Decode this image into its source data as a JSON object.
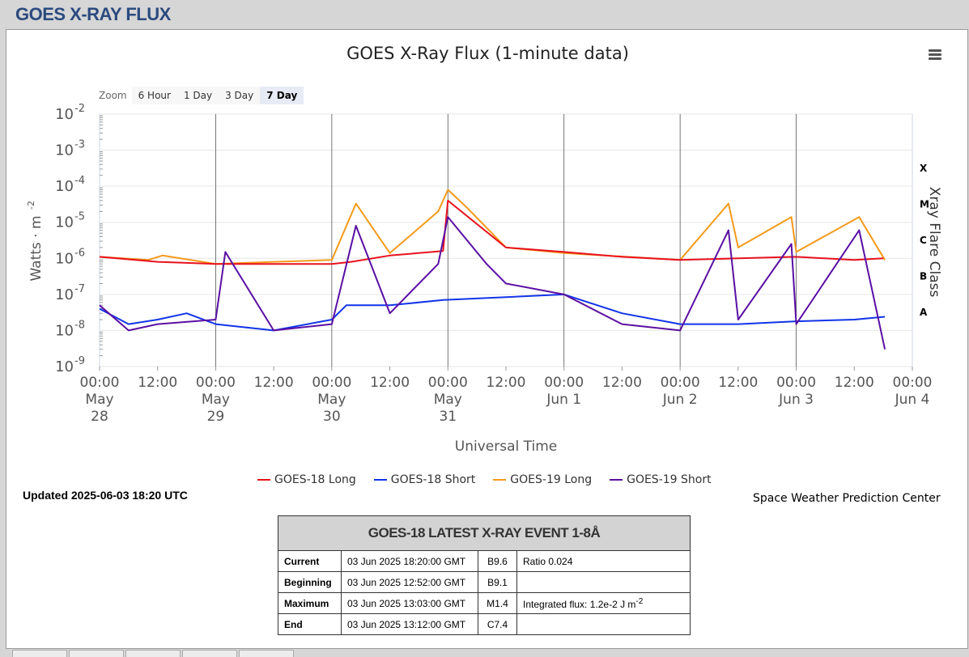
{
  "page": {
    "title": "GOES X-RAY FLUX"
  },
  "chart": {
    "title": "GOES X-Ray Flux (1-minute data)",
    "zoom_label": "Zoom",
    "zoom_buttons": [
      "6 Hour",
      "1 Day",
      "3 Day",
      "7 Day"
    ],
    "zoom_active": "7 Day",
    "ylabel": "Watts · m",
    "ylabel_sup": "-2",
    "y2label": "Xray Flare Class",
    "xlabel": "Universal Time",
    "flare_classes": [
      "X",
      "M",
      "C",
      "B",
      "A"
    ],
    "y_ticks": [
      {
        "base": "10",
        "exp": "-2"
      },
      {
        "base": "10",
        "exp": "-3"
      },
      {
        "base": "10",
        "exp": "-4"
      },
      {
        "base": "10",
        "exp": "-5"
      },
      {
        "base": "10",
        "exp": "-6"
      },
      {
        "base": "10",
        "exp": "-7"
      },
      {
        "base": "10",
        "exp": "-8"
      },
      {
        "base": "10",
        "exp": "-9"
      }
    ],
    "x_ticks": [
      {
        "time": "00:00",
        "date1": "May",
        "date2": "28"
      },
      {
        "time": "12:00",
        "date1": "",
        "date2": ""
      },
      {
        "time": "00:00",
        "date1": "May",
        "date2": "29"
      },
      {
        "time": "12:00",
        "date1": "",
        "date2": ""
      },
      {
        "time": "00:00",
        "date1": "May",
        "date2": "30"
      },
      {
        "time": "12:00",
        "date1": "",
        "date2": ""
      },
      {
        "time": "00:00",
        "date1": "May",
        "date2": "31"
      },
      {
        "time": "12:00",
        "date1": "",
        "date2": ""
      },
      {
        "time": "00:00",
        "date1": "Jun 1",
        "date2": ""
      },
      {
        "time": "12:00",
        "date1": "",
        "date2": ""
      },
      {
        "time": "00:00",
        "date1": "Jun 2",
        "date2": ""
      },
      {
        "time": "12:00",
        "date1": "",
        "date2": ""
      },
      {
        "time": "00:00",
        "date1": "Jun 3",
        "date2": ""
      },
      {
        "time": "12:00",
        "date1": "",
        "date2": ""
      },
      {
        "time": "00:00",
        "date1": "Jun 4",
        "date2": ""
      }
    ]
  },
  "chart_data": {
    "type": "line",
    "title": "GOES X-Ray Flux (1-minute data)",
    "xlabel": "Universal Time",
    "ylabel": "Watts · m-2",
    "y_scale": "log",
    "ylim": [
      1e-09,
      0.01
    ],
    "xlim": [
      "2025-05-28 00:00",
      "2025-06-04 00:00"
    ],
    "grid": true,
    "legend_position": "bottom",
    "series": [
      {
        "name": "GOES-18 Long",
        "color": "#e8111d",
        "points": [
          [
            "2025-05-28 00:00",
            1.1e-06
          ],
          [
            "2025-05-28 12:00",
            8e-07
          ],
          [
            "2025-05-29 00:00",
            7e-07
          ],
          [
            "2025-05-29 12:00",
            7e-07
          ],
          [
            "2025-05-30 00:00",
            7e-07
          ],
          [
            "2025-05-30 04:00",
            8e-07
          ],
          [
            "2025-05-30 12:00",
            1.2e-06
          ],
          [
            "2025-05-30 23:00",
            1.6e-06
          ],
          [
            "2025-05-31 00:00",
            4e-05
          ],
          [
            "2025-05-31 12:00",
            2e-06
          ],
          [
            "2025-06-01 00:00",
            1.5e-06
          ],
          [
            "2025-06-01 12:00",
            1.1e-06
          ],
          [
            "2025-06-02 00:00",
            9e-07
          ],
          [
            "2025-06-02 12:00",
            1e-06
          ],
          [
            "2025-06-03 00:00",
            1.1e-06
          ],
          [
            "2025-06-03 12:00",
            9e-07
          ],
          [
            "2025-06-03 18:00",
            1e-06
          ]
        ]
      },
      {
        "name": "GOES-18 Short",
        "color": "#1134e8",
        "points": [
          [
            "2025-05-28 00:00",
            4e-08
          ],
          [
            "2025-05-28 06:00",
            1.5e-08
          ],
          [
            "2025-05-28 12:00",
            2e-08
          ],
          [
            "2025-05-28 18:00",
            3e-08
          ],
          [
            "2025-05-29 00:00",
            1.5e-08
          ],
          [
            "2025-05-29 12:00",
            1e-08
          ],
          [
            "2025-05-30 00:00",
            2e-08
          ],
          [
            "2025-05-30 03:00",
            5e-08
          ],
          [
            "2025-05-30 12:00",
            5e-08
          ],
          [
            "2025-05-30 23:00",
            7e-08
          ],
          [
            "2025-06-01 00:00",
            1e-07
          ],
          [
            "2025-06-01 12:00",
            3e-08
          ],
          [
            "2025-06-02 00:00",
            1.5e-08
          ],
          [
            "2025-06-02 12:00",
            1.5e-08
          ],
          [
            "2025-06-03 00:00",
            1.8e-08
          ],
          [
            "2025-06-03 12:00",
            2e-08
          ],
          [
            "2025-06-03 18:20",
            2.4e-08
          ]
        ]
      },
      {
        "name": "GOES-19 Long",
        "color": "#f49a1b",
        "points": [
          [
            "2025-05-28 00:00",
            1.1e-06
          ],
          [
            "2025-05-28 10:00",
            9e-07
          ],
          [
            "2025-05-28 13:00",
            1.2e-06
          ],
          [
            "2025-05-29 00:00",
            7e-07
          ],
          [
            "2025-05-29 12:00",
            8e-07
          ],
          [
            "2025-05-30 00:00",
            9e-07
          ],
          [
            "2025-05-30 05:00",
            3.3e-05
          ],
          [
            "2025-05-30 12:00",
            1.4e-06
          ],
          [
            "2025-05-30 22:00",
            2e-05
          ],
          [
            "2025-05-31 00:00",
            8e-05
          ],
          [
            "2025-05-31 04:00",
            2.5e-05
          ],
          [
            "2025-05-31 12:00",
            2e-06
          ],
          [
            "2025-06-01 00:00",
            1.4e-06
          ],
          [
            "2025-06-02 00:00",
            9e-07
          ],
          [
            "2025-06-02 10:00",
            3.3e-05
          ],
          [
            "2025-06-02 12:00",
            2e-06
          ],
          [
            "2025-06-02 23:00",
            1.4e-05
          ],
          [
            "2025-06-03 00:00",
            1.5e-06
          ],
          [
            "2025-06-03 13:00",
            1.4e-05
          ],
          [
            "2025-06-03 18:20",
            9e-07
          ]
        ]
      },
      {
        "name": "GOES-19 Short",
        "color": "#5a0fa3",
        "points": [
          [
            "2025-05-28 00:00",
            5e-08
          ],
          [
            "2025-05-28 06:00",
            1e-08
          ],
          [
            "2025-05-28 12:00",
            1.5e-08
          ],
          [
            "2025-05-29 00:00",
            2e-08
          ],
          [
            "2025-05-29 02:00",
            1.5e-06
          ],
          [
            "2025-05-29 12:00",
            1e-08
          ],
          [
            "2025-05-30 00:00",
            1.5e-08
          ],
          [
            "2025-05-30 05:00",
            8e-06
          ],
          [
            "2025-05-30 12:00",
            3e-08
          ],
          [
            "2025-05-30 22:00",
            7e-07
          ],
          [
            "2025-05-31 00:00",
            1.4e-05
          ],
          [
            "2025-05-31 08:00",
            7e-07
          ],
          [
            "2025-05-31 12:00",
            2e-07
          ],
          [
            "2025-06-01 00:00",
            1e-07
          ],
          [
            "2025-06-01 12:00",
            1.5e-08
          ],
          [
            "2025-06-02 00:00",
            1e-08
          ],
          [
            "2025-06-02 10:00",
            6e-06
          ],
          [
            "2025-06-02 12:00",
            2e-08
          ],
          [
            "2025-06-02 23:00",
            2.5e-06
          ],
          [
            "2025-06-03 00:00",
            1.5e-08
          ],
          [
            "2025-06-03 13:00",
            6e-06
          ],
          [
            "2025-06-03 18:20",
            3e-09
          ]
        ]
      }
    ]
  },
  "legend": [
    {
      "name": "GOES-18 Long",
      "color": "#e8111d"
    },
    {
      "name": "GOES-18 Short",
      "color": "#1134e8"
    },
    {
      "name": "GOES-19 Long",
      "color": "#f49a1b"
    },
    {
      "name": "GOES-19 Short",
      "color": "#5a0fa3"
    }
  ],
  "updated": "Updated 2025-06-03 18:20 UTC",
  "credit": "Space Weather Prediction Center",
  "event_table": {
    "title": "GOES-18 LATEST X-RAY EVENT 1-8Å",
    "rows": [
      {
        "label": "Current",
        "time": "03 Jun 2025 18:20:00 GMT",
        "class": "B9.6",
        "extra": "Ratio 0.024"
      },
      {
        "label": "Beginning",
        "time": "03 Jun 2025 12:52:00 GMT",
        "class": "B9.1",
        "extra": ""
      },
      {
        "label": "Maximum",
        "time": "03 Jun 2025 13:03:00 GMT",
        "class": "M1.4",
        "extra": "Integrated flux: 1.2e-2 J m",
        "extra_sup": "-2"
      },
      {
        "label": "End",
        "time": "03 Jun 2025 13:12:00 GMT",
        "class": "C7.4",
        "extra": ""
      }
    ]
  }
}
